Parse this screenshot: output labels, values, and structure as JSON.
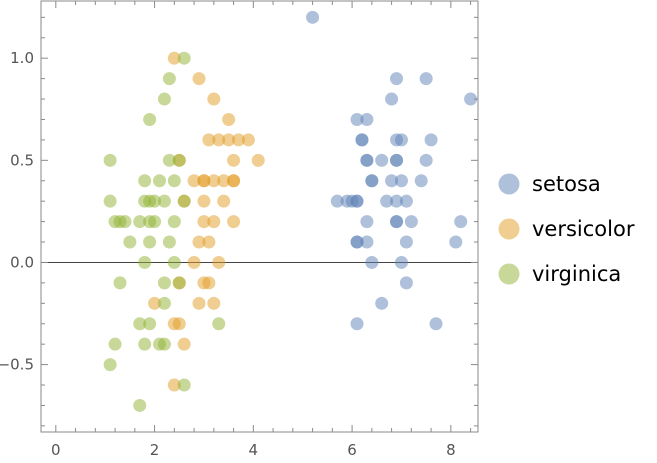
{
  "chart_data": {
    "type": "scatter",
    "title": "",
    "xlabel": "",
    "ylabel": "",
    "xlim": [
      -0.3,
      8.55
    ],
    "ylim": [
      -0.83,
      1.28
    ],
    "x_ticks": [
      0,
      2,
      4,
      6,
      8
    ],
    "y_ticks": [
      -0.5,
      0.0,
      0.5,
      1.0
    ],
    "x_tick_labels": [
      "0",
      "2",
      "4",
      "6",
      "8"
    ],
    "y_tick_labels": [
      "−0.5",
      "0.0",
      "0.5",
      "1.0"
    ],
    "grid": false,
    "frame": true,
    "zero_line": true,
    "legend_position": "right",
    "marker_opacity": 0.5,
    "series": [
      {
        "name": "setosa",
        "color": "#5e81b5",
        "points": [
          [
            5.2,
            1.2
          ],
          [
            6.9,
            0.9
          ],
          [
            7.5,
            0.9
          ],
          [
            6.8,
            0.8
          ],
          [
            8.4,
            0.8
          ],
          [
            6.1,
            0.7
          ],
          [
            6.3,
            0.7
          ],
          [
            7.0,
            0.6
          ],
          [
            7.6,
            0.6
          ],
          [
            6.2,
            0.6
          ],
          [
            6.2,
            0.6
          ],
          [
            6.9,
            0.6
          ],
          [
            6.6,
            0.5
          ],
          [
            6.3,
            0.5
          ],
          [
            6.3,
            0.5
          ],
          [
            6.9,
            0.5
          ],
          [
            6.9,
            0.5
          ],
          [
            7.5,
            0.5
          ],
          [
            6.4,
            0.4
          ],
          [
            6.4,
            0.4
          ],
          [
            6.8,
            0.4
          ],
          [
            7.0,
            0.4
          ],
          [
            7.4,
            0.4
          ],
          [
            5.7,
            0.3
          ],
          [
            5.9,
            0.3
          ],
          [
            6.0,
            0.3
          ],
          [
            6.1,
            0.3
          ],
          [
            6.1,
            0.3
          ],
          [
            6.7,
            0.3
          ],
          [
            6.9,
            0.3
          ],
          [
            7.1,
            0.3
          ],
          [
            6.3,
            0.2
          ],
          [
            6.9,
            0.2
          ],
          [
            6.9,
            0.2
          ],
          [
            7.2,
            0.2
          ],
          [
            8.2,
            0.2
          ],
          [
            6.1,
            0.1
          ],
          [
            6.1,
            0.1
          ],
          [
            6.3,
            0.1
          ],
          [
            7.1,
            0.1
          ],
          [
            8.1,
            0.1
          ],
          [
            6.4,
            0.0
          ],
          [
            7.0,
            0.0
          ],
          [
            7.1,
            -0.1
          ],
          [
            6.6,
            -0.2
          ],
          [
            6.1,
            -0.3
          ],
          [
            7.7,
            -0.3
          ]
        ]
      },
      {
        "name": "versicolor",
        "color": "#e19c24",
        "points": [
          [
            2.4,
            1.0
          ],
          [
            2.9,
            0.9
          ],
          [
            3.2,
            0.8
          ],
          [
            3.5,
            0.7
          ],
          [
            3.1,
            0.6
          ],
          [
            3.3,
            0.6
          ],
          [
            3.5,
            0.6
          ],
          [
            3.7,
            0.6
          ],
          [
            3.9,
            0.6
          ],
          [
            2.5,
            0.5
          ],
          [
            3.6,
            0.5
          ],
          [
            4.1,
            0.5
          ],
          [
            2.8,
            0.4
          ],
          [
            3.0,
            0.4
          ],
          [
            3.0,
            0.4
          ],
          [
            3.2,
            0.4
          ],
          [
            3.4,
            0.4
          ],
          [
            3.6,
            0.4
          ],
          [
            3.6,
            0.4
          ],
          [
            2.6,
            0.3
          ],
          [
            3.0,
            0.3
          ],
          [
            3.4,
            0.3
          ],
          [
            3.0,
            0.2
          ],
          [
            3.2,
            0.2
          ],
          [
            3.6,
            0.2
          ],
          [
            2.9,
            0.1
          ],
          [
            3.1,
            0.1
          ],
          [
            2.8,
            0.0
          ],
          [
            3.3,
            0.0
          ],
          [
            2.5,
            -0.1
          ],
          [
            3.0,
            -0.1
          ],
          [
            3.1,
            -0.1
          ],
          [
            2.0,
            -0.2
          ],
          [
            2.9,
            -0.2
          ],
          [
            3.2,
            -0.2
          ],
          [
            2.4,
            -0.3
          ],
          [
            2.5,
            -0.3
          ],
          [
            2.6,
            -0.4
          ],
          [
            2.4,
            -0.6
          ]
        ]
      },
      {
        "name": "virginica",
        "color": "#8fb131",
        "points": [
          [
            2.6,
            1.0
          ],
          [
            2.3,
            0.9
          ],
          [
            2.2,
            0.8
          ],
          [
            1.9,
            0.7
          ],
          [
            2.3,
            0.5
          ],
          [
            2.5,
            0.5
          ],
          [
            1.1,
            0.5
          ],
          [
            1.8,
            0.4
          ],
          [
            2.4,
            0.4
          ],
          [
            2.1,
            0.4
          ],
          [
            1.8,
            0.3
          ],
          [
            2.0,
            0.3
          ],
          [
            2.6,
            0.3
          ],
          [
            1.1,
            0.3
          ],
          [
            1.9,
            0.3
          ],
          [
            2.2,
            0.3
          ],
          [
            2.0,
            0.2
          ],
          [
            1.4,
            0.2
          ],
          [
            1.7,
            0.2
          ],
          [
            1.9,
            0.2
          ],
          [
            2.4,
            0.2
          ],
          [
            1.2,
            0.2
          ],
          [
            1.3,
            0.2
          ],
          [
            1.5,
            0.1
          ],
          [
            1.9,
            0.1
          ],
          [
            2.3,
            0.1
          ],
          [
            1.8,
            0.0
          ],
          [
            2.4,
            0.0
          ],
          [
            1.3,
            -0.1
          ],
          [
            2.2,
            -0.1
          ],
          [
            2.5,
            -0.1
          ],
          [
            2.2,
            -0.2
          ],
          [
            1.7,
            -0.3
          ],
          [
            1.9,
            -0.3
          ],
          [
            3.3,
            -0.3
          ],
          [
            1.2,
            -0.4
          ],
          [
            2.1,
            -0.4
          ],
          [
            2.2,
            -0.4
          ],
          [
            1.8,
            -0.4
          ],
          [
            1.1,
            -0.5
          ],
          [
            2.6,
            -0.6
          ],
          [
            1.7,
            -0.7
          ]
        ]
      }
    ]
  }
}
